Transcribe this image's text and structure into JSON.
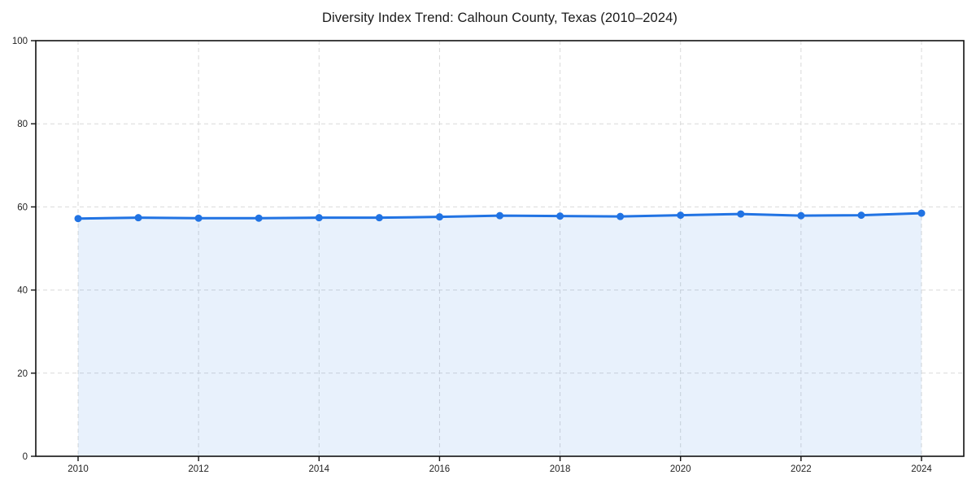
{
  "page": {
    "background": "#ffffff"
  },
  "chart_data": {
    "type": "area",
    "title": "Diversity Index Trend: Calhoun County, Texas (2010–2024)",
    "x": [
      2010,
      2011,
      2012,
      2013,
      2014,
      2015,
      2016,
      2017,
      2018,
      2019,
      2020,
      2021,
      2022,
      2023,
      2024
    ],
    "series": [
      {
        "name": "Diversity Index",
        "values": [
          57.2,
          57.4,
          57.3,
          57.3,
          57.4,
          57.4,
          57.6,
          57.9,
          57.8,
          57.7,
          58.0,
          58.3,
          57.9,
          58.0,
          58.5
        ]
      }
    ],
    "xlabel": "",
    "ylabel": "",
    "xticks": [
      2010,
      2012,
      2014,
      2016,
      2018,
      2020,
      2022,
      2024
    ],
    "yticks": [
      0,
      20,
      40,
      60,
      80,
      100
    ],
    "ylim": [
      0,
      100
    ],
    "grid": "dashed",
    "legend": "none",
    "marker": "circle",
    "colors": {
      "line": "#2173e3",
      "fill": "#2173e3",
      "fill_opacity": "0.10",
      "grid": "#d9d9d9",
      "spine": "#111111",
      "tick_label": "#222222",
      "title": "#1a1a1a",
      "background": "#ffffff"
    }
  }
}
